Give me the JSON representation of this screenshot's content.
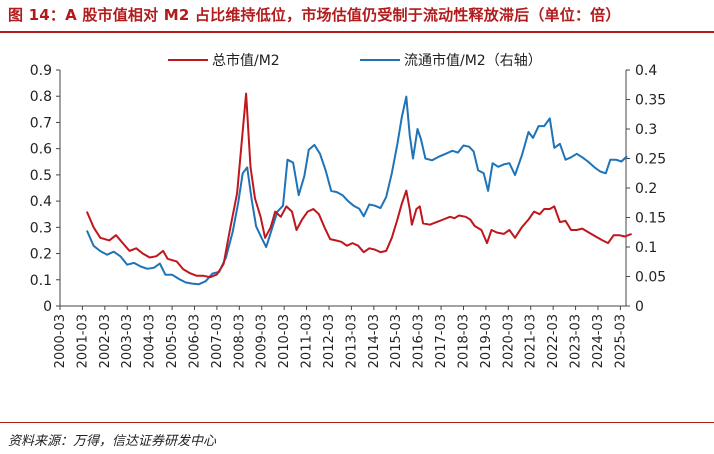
{
  "title": "图 14：A 股市值相对 M2 占比维持低位，市场估值仍受制于流动性释放滞后（单位：倍）",
  "source": "资料来源：万得，信达证券研发中心",
  "chart_data": {
    "type": "line",
    "title": "图 14：A 股市值相对 M2 占比维持低位，市场估值仍受制于流动性释放滞后（单位：倍）",
    "x_ticks": [
      "2000-03",
      "2001-03",
      "2002-03",
      "2003-03",
      "2004-03",
      "2005-03",
      "2006-03",
      "2007-03",
      "2008-03",
      "2009-03",
      "2010-03",
      "2011-03",
      "2012-03",
      "2013-03",
      "2014-03",
      "2015-03",
      "2016-03",
      "2017-03",
      "2018-03",
      "2019-03",
      "2020-03",
      "2021-03",
      "2022-03",
      "2023-03",
      "2024-03",
      "2025-03"
    ],
    "y_left": {
      "range": [
        0,
        0.9
      ],
      "ticks": [
        "0",
        "0.1",
        "0.2",
        "0.3",
        "0.4",
        "0.5",
        "0.6",
        "0.7",
        "0.8",
        "0.9"
      ]
    },
    "y_right": {
      "range": [
        0,
        0.4
      ],
      "ticks": [
        "0",
        "0.05",
        "0.1",
        "0.15",
        "0.2",
        "0.25",
        "0.3",
        "0.35",
        "0.4"
      ]
    },
    "legend_position": "top",
    "grid": false,
    "series": [
      {
        "name": "总市值/M2",
        "axis": "left",
        "color": "#c0161d",
        "points": [
          [
            2001.2,
            0.36
          ],
          [
            2001.5,
            0.3
          ],
          [
            2001.8,
            0.26
          ],
          [
            2002.2,
            0.25
          ],
          [
            2002.5,
            0.27
          ],
          [
            2002.8,
            0.24
          ],
          [
            2003.1,
            0.21
          ],
          [
            2003.4,
            0.22
          ],
          [
            2003.7,
            0.2
          ],
          [
            2004.0,
            0.185
          ],
          [
            2004.3,
            0.19
          ],
          [
            2004.6,
            0.21
          ],
          [
            2004.8,
            0.18
          ],
          [
            2005.2,
            0.17
          ],
          [
            2005.5,
            0.14
          ],
          [
            2005.8,
            0.125
          ],
          [
            2006.1,
            0.115
          ],
          [
            2006.4,
            0.115
          ],
          [
            2006.7,
            0.11
          ],
          [
            2007.0,
            0.12
          ],
          [
            2007.3,
            0.16
          ],
          [
            2007.6,
            0.3
          ],
          [
            2007.9,
            0.43
          ],
          [
            2008.1,
            0.62
          ],
          [
            2008.3,
            0.81
          ],
          [
            2008.5,
            0.53
          ],
          [
            2008.7,
            0.41
          ],
          [
            2008.95,
            0.34
          ],
          [
            2009.15,
            0.26
          ],
          [
            2009.4,
            0.3
          ],
          [
            2009.6,
            0.36
          ],
          [
            2009.85,
            0.34
          ],
          [
            2010.1,
            0.38
          ],
          [
            2010.35,
            0.36
          ],
          [
            2010.55,
            0.29
          ],
          [
            2010.8,
            0.33
          ],
          [
            2011.05,
            0.36
          ],
          [
            2011.3,
            0.37
          ],
          [
            2011.55,
            0.35
          ],
          [
            2011.8,
            0.3
          ],
          [
            2012.05,
            0.255
          ],
          [
            2012.3,
            0.25
          ],
          [
            2012.55,
            0.245
          ],
          [
            2012.8,
            0.23
          ],
          [
            2013.05,
            0.24
          ],
          [
            2013.3,
            0.23
          ],
          [
            2013.55,
            0.205
          ],
          [
            2013.8,
            0.22
          ],
          [
            2014.05,
            0.215
          ],
          [
            2014.3,
            0.205
          ],
          [
            2014.55,
            0.21
          ],
          [
            2014.8,
            0.26
          ],
          [
            2015.05,
            0.33
          ],
          [
            2015.25,
            0.39
          ],
          [
            2015.45,
            0.44
          ],
          [
            2015.6,
            0.37
          ],
          [
            2015.7,
            0.31
          ],
          [
            2015.9,
            0.37
          ],
          [
            2016.05,
            0.38
          ],
          [
            2016.2,
            0.315
          ],
          [
            2016.5,
            0.31
          ],
          [
            2016.8,
            0.32
          ],
          [
            2017.1,
            0.33
          ],
          [
            2017.4,
            0.34
          ],
          [
            2017.6,
            0.335
          ],
          [
            2017.8,
            0.345
          ],
          [
            2018.1,
            0.34
          ],
          [
            2018.3,
            0.33
          ],
          [
            2018.5,
            0.305
          ],
          [
            2018.8,
            0.29
          ],
          [
            2019.05,
            0.24
          ],
          [
            2019.25,
            0.29
          ],
          [
            2019.5,
            0.28
          ],
          [
            2019.8,
            0.275
          ],
          [
            2020.05,
            0.29
          ],
          [
            2020.3,
            0.26
          ],
          [
            2020.6,
            0.3
          ],
          [
            2020.9,
            0.33
          ],
          [
            2021.15,
            0.36
          ],
          [
            2021.4,
            0.35
          ],
          [
            2021.6,
            0.37
          ],
          [
            2021.85,
            0.37
          ],
          [
            2022.05,
            0.38
          ],
          [
            2022.3,
            0.32
          ],
          [
            2022.55,
            0.325
          ],
          [
            2022.8,
            0.29
          ],
          [
            2023.05,
            0.29
          ],
          [
            2023.3,
            0.295
          ],
          [
            2023.6,
            0.28
          ],
          [
            2023.9,
            0.265
          ],
          [
            2024.2,
            0.25
          ],
          [
            2024.45,
            0.24
          ],
          [
            2024.7,
            0.27
          ],
          [
            2024.95,
            0.27
          ],
          [
            2025.2,
            0.265
          ],
          [
            2025.5,
            0.275
          ]
        ]
      },
      {
        "name": "流通市值/M2（右轴）",
        "axis": "right",
        "color": "#1f73b7",
        "points": [
          [
            2001.2,
            0.128
          ],
          [
            2001.5,
            0.102
          ],
          [
            2001.8,
            0.093
          ],
          [
            2002.1,
            0.087
          ],
          [
            2002.4,
            0.092
          ],
          [
            2002.7,
            0.084
          ],
          [
            2003.0,
            0.07
          ],
          [
            2003.3,
            0.073
          ],
          [
            2003.6,
            0.067
          ],
          [
            2003.9,
            0.063
          ],
          [
            2004.2,
            0.065
          ],
          [
            2004.45,
            0.072
          ],
          [
            2004.7,
            0.053
          ],
          [
            2005.0,
            0.053
          ],
          [
            2005.3,
            0.046
          ],
          [
            2005.6,
            0.04
          ],
          [
            2005.9,
            0.038
          ],
          [
            2006.2,
            0.037
          ],
          [
            2006.5,
            0.042
          ],
          [
            2006.8,
            0.055
          ],
          [
            2007.1,
            0.058
          ],
          [
            2007.4,
            0.082
          ],
          [
            2007.7,
            0.125
          ],
          [
            2007.95,
            0.175
          ],
          [
            2008.15,
            0.225
          ],
          [
            2008.35,
            0.235
          ],
          [
            2008.55,
            0.18
          ],
          [
            2008.75,
            0.135
          ],
          [
            2009.0,
            0.115
          ],
          [
            2009.2,
            0.1
          ],
          [
            2009.45,
            0.13
          ],
          [
            2009.7,
            0.16
          ],
          [
            2009.95,
            0.17
          ],
          [
            2010.15,
            0.248
          ],
          [
            2010.4,
            0.243
          ],
          [
            2010.65,
            0.188
          ],
          [
            2010.9,
            0.22
          ],
          [
            2011.1,
            0.265
          ],
          [
            2011.35,
            0.273
          ],
          [
            2011.6,
            0.258
          ],
          [
            2011.85,
            0.23
          ],
          [
            2012.1,
            0.195
          ],
          [
            2012.35,
            0.193
          ],
          [
            2012.6,
            0.188
          ],
          [
            2012.85,
            0.178
          ],
          [
            2013.1,
            0.17
          ],
          [
            2013.35,
            0.165
          ],
          [
            2013.55,
            0.152
          ],
          [
            2013.8,
            0.172
          ],
          [
            2014.05,
            0.17
          ],
          [
            2014.3,
            0.166
          ],
          [
            2014.55,
            0.185
          ],
          [
            2014.8,
            0.225
          ],
          [
            2015.05,
            0.275
          ],
          [
            2015.25,
            0.32
          ],
          [
            2015.45,
            0.355
          ],
          [
            2015.6,
            0.29
          ],
          [
            2015.75,
            0.25
          ],
          [
            2015.95,
            0.3
          ],
          [
            2016.1,
            0.283
          ],
          [
            2016.3,
            0.25
          ],
          [
            2016.6,
            0.247
          ],
          [
            2016.9,
            0.253
          ],
          [
            2017.2,
            0.258
          ],
          [
            2017.5,
            0.263
          ],
          [
            2017.75,
            0.26
          ],
          [
            2018.0,
            0.272
          ],
          [
            2018.25,
            0.27
          ],
          [
            2018.45,
            0.262
          ],
          [
            2018.65,
            0.23
          ],
          [
            2018.9,
            0.225
          ],
          [
            2019.1,
            0.195
          ],
          [
            2019.3,
            0.242
          ],
          [
            2019.55,
            0.236
          ],
          [
            2019.8,
            0.24
          ],
          [
            2020.05,
            0.242
          ],
          [
            2020.3,
            0.222
          ],
          [
            2020.6,
            0.255
          ],
          [
            2020.9,
            0.295
          ],
          [
            2021.1,
            0.285
          ],
          [
            2021.35,
            0.305
          ],
          [
            2021.6,
            0.305
          ],
          [
            2021.85,
            0.318
          ],
          [
            2022.05,
            0.268
          ],
          [
            2022.3,
            0.275
          ],
          [
            2022.55,
            0.248
          ],
          [
            2022.8,
            0.252
          ],
          [
            2023.05,
            0.258
          ],
          [
            2023.3,
            0.252
          ],
          [
            2023.55,
            0.245
          ],
          [
            2023.85,
            0.235
          ],
          [
            2024.1,
            0.228
          ],
          [
            2024.35,
            0.225
          ],
          [
            2024.55,
            0.248
          ],
          [
            2024.8,
            0.248
          ],
          [
            2025.05,
            0.245
          ],
          [
            2025.3,
            0.254
          ]
        ]
      }
    ]
  }
}
